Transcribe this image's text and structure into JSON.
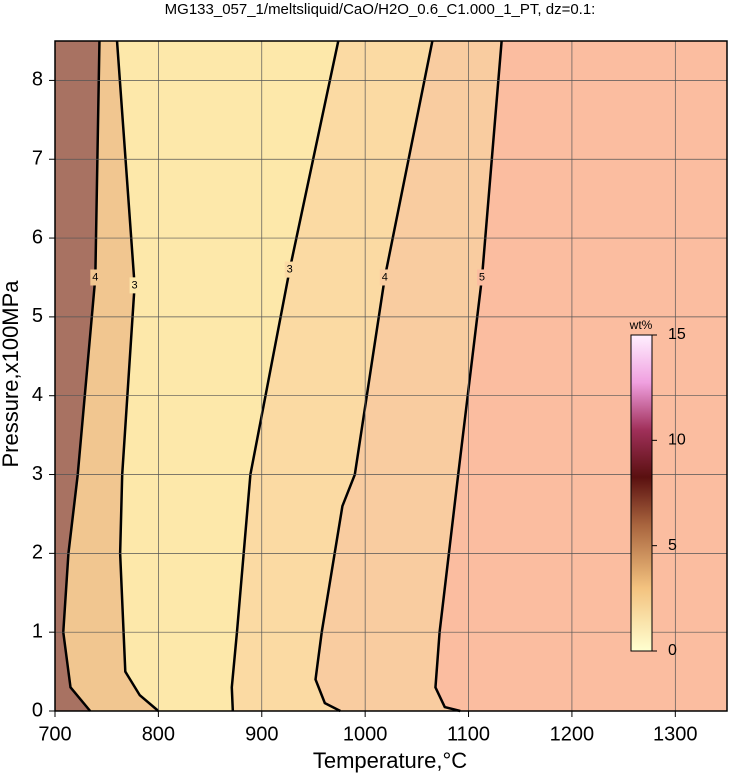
{
  "chart_data": {
    "type": "contour",
    "title": "MG133_057_1/meltsliquid/CaO/H2O_0.6_C1.000_1_PT, dz=0.1:",
    "x_label": "Temperature,°C",
    "y_label": "Pressure,x100MPa",
    "xlim": [
      700,
      1350
    ],
    "xticks": [
      700,
      800,
      900,
      1000,
      1100,
      1200,
      1300
    ],
    "ylim": [
      0,
      8.5
    ],
    "yticks": [
      0,
      1,
      2,
      3,
      4,
      5,
      6,
      7,
      8
    ],
    "grid": true,
    "contours": [
      {
        "level": 4,
        "fill": "#f1c690",
        "x": [
          743,
          739,
          722,
          713,
          708,
          715,
          734
        ],
        "y": [
          8.5,
          5.5,
          3,
          2,
          1,
          0.3,
          0
        ]
      },
      {
        "level": 3,
        "fill": "#fde8aa",
        "x": [
          760,
          777,
          765,
          763,
          768,
          782,
          800
        ],
        "y": [
          8.5,
          5.4,
          3,
          2,
          0.5,
          0.2,
          0
        ]
      },
      {
        "level": 3,
        "fill": "#fbdaa3",
        "x": [
          974,
          927,
          889,
          876,
          871,
          872
        ],
        "y": [
          8.5,
          5.6,
          3,
          1,
          0.3,
          0
        ]
      },
      {
        "level": 4,
        "fill": "#f9cca0",
        "x": [
          1065,
          1019,
          990,
          978,
          958,
          952,
          961,
          976
        ],
        "y": [
          8.5,
          5.5,
          3,
          2.6,
          1,
          0.4,
          0.1,
          0
        ]
      },
      {
        "level": 5,
        "fill": "#fbbda0",
        "x": [
          1132,
          1113,
          1090,
          1072,
          1068,
          1077,
          1092
        ],
        "y": [
          8.5,
          5.5,
          3,
          1,
          0.3,
          0.05,
          0
        ]
      }
    ],
    "colorbar": {
      "label": "wt%",
      "lim": [
        0,
        15
      ],
      "ticks": [
        0,
        5,
        10,
        15
      ]
    }
  }
}
